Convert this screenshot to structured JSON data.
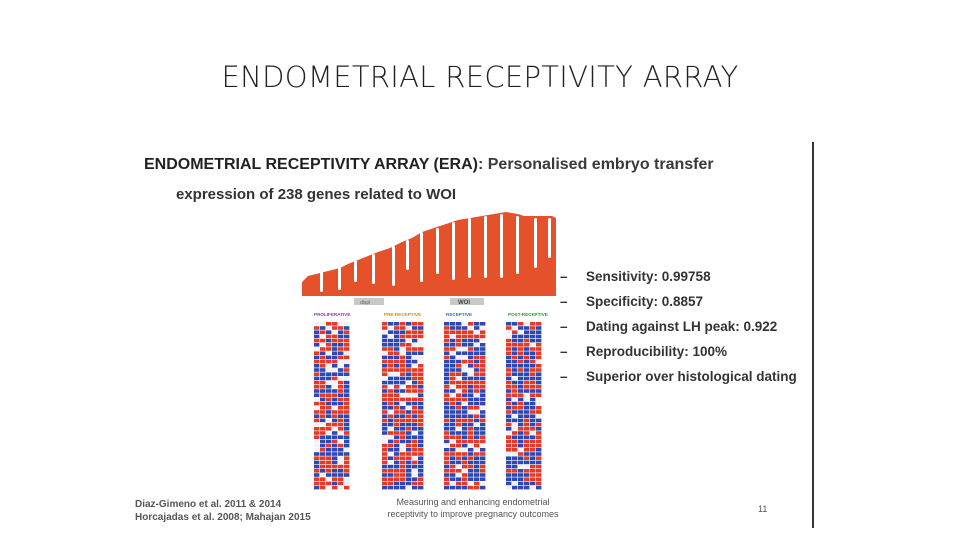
{
  "slide": {
    "title": "ENDOMETRIAL RECEPTIVITY ARRAY"
  },
  "figure": {
    "headline_abbr": "ENDOMETRIAL RECEPTIVITY ARRAY (ERA)",
    "headline_rest": ": Personalised embryo transfer",
    "subtitle": "expression of 238 genes related to WOI",
    "top_labels": [
      "displ",
      "WOI"
    ],
    "phase_labels": [
      "PROLIFERATIVE",
      "PRE-RECEPTIVE",
      "RECEPTIVE",
      "POST-RECEPTIVE"
    ],
    "phase_colors": [
      "#8b3fa0",
      "#d98a1d",
      "#3b6cc6",
      "#2f9a3e"
    ],
    "bullet_dash": "–",
    "bullets": [
      "Sensitivity: 0.99758",
      "Specificity: 0.8857",
      "Dating against LH peak: 0.922",
      "Reproducibility: 100%",
      "Superior over histological dating"
    ],
    "citation_line1": "Diaz-Gimeno et al. 2011 & 2014",
    "citation_line2": "Horcajadas et al. 2008; Mahajan 2015",
    "note_line1": "Measuring and enhancing endometrial",
    "note_line2": "receptivity to improve pregnancy outcomes",
    "page_number": "11",
    "colors": {
      "profile_orange": "#e4512a",
      "heat_red": "#e23b2a",
      "heat_blue": "#2e49b4",
      "heat_white": "#f2f2f6"
    }
  }
}
